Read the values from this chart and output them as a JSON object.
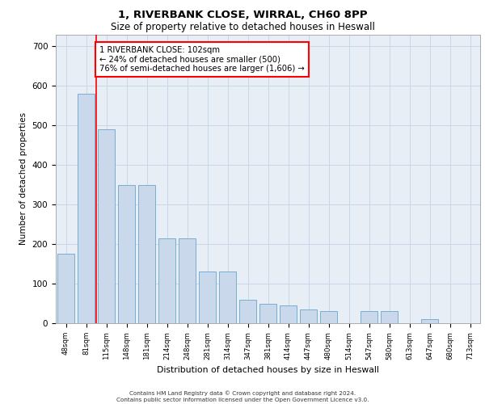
{
  "title1": "1, RIVERBANK CLOSE, WIRRAL, CH60 8PP",
  "title2": "Size of property relative to detached houses in Heswall",
  "xlabel": "Distribution of detached houses by size in Heswall",
  "ylabel": "Number of detached properties",
  "categories": [
    "48sqm",
    "81sqm",
    "115sqm",
    "148sqm",
    "181sqm",
    "214sqm",
    "248sqm",
    "281sqm",
    "314sqm",
    "347sqm",
    "381sqm",
    "414sqm",
    "447sqm",
    "480sqm",
    "514sqm",
    "547sqm",
    "580sqm",
    "613sqm",
    "647sqm",
    "680sqm",
    "713sqm"
  ],
  "values": [
    175,
    580,
    490,
    350,
    350,
    215,
    215,
    130,
    130,
    60,
    50,
    45,
    35,
    30,
    0,
    30,
    30,
    0,
    10,
    0,
    0
  ],
  "bar_color": "#c9d9eb",
  "bar_edge_color": "#7aadd4",
  "vline_color": "red",
  "vline_pos": 1.5,
  "annotation_text": "1 RIVERBANK CLOSE: 102sqm\n← 24% of detached houses are smaller (500)\n76% of semi-detached houses are larger (1,606) →",
  "annotation_box_color": "white",
  "annotation_box_edgecolor": "red",
  "footnote": "Contains HM Land Registry data © Crown copyright and database right 2024.\nContains public sector information licensed under the Open Government Licence v3.0.",
  "ylim": [
    0,
    730
  ],
  "yticks": [
    0,
    100,
    200,
    300,
    400,
    500,
    600,
    700
  ],
  "grid_color": "#c8d8e8",
  "bg_color": "#e8eef6"
}
